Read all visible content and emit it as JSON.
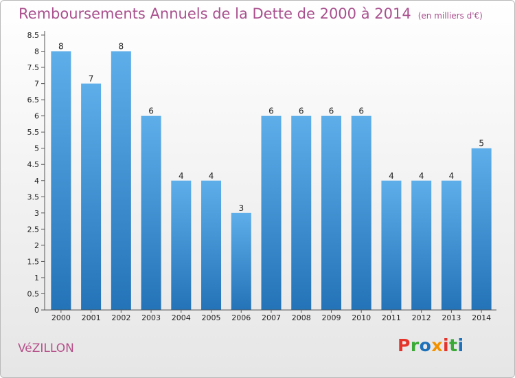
{
  "header": {
    "title": "Remboursements Annuels de la Dette de 2000 à 2014",
    "unit": "(en milliers d'€)"
  },
  "commune": "VéZILLON",
  "logo": {
    "text": "Proxiti",
    "letters": [
      {
        "char": "P",
        "color": "#e6332a"
      },
      {
        "char": "r",
        "color": "#3aa935"
      },
      {
        "char": "o",
        "color": "#1d71b8"
      },
      {
        "char": "x",
        "color": "#f39200"
      },
      {
        "char": "i",
        "color": "#e6332a"
      },
      {
        "char": "t",
        "color": "#3aa935"
      },
      {
        "char": "i",
        "color": "#1d71b8"
      }
    ]
  },
  "colors": {
    "bar_light": "#5eaeea",
    "bar_dark": "#2473b8",
    "title": "#a9508e"
  },
  "chart_data": {
    "type": "bar",
    "categories": [
      "2000",
      "2001",
      "2002",
      "2003",
      "2004",
      "2005",
      "2006",
      "2007",
      "2008",
      "2009",
      "2010",
      "2011",
      "2012",
      "2013",
      "2014"
    ],
    "values": [
      8,
      7,
      8,
      6,
      4,
      4,
      3,
      6,
      6,
      6,
      6,
      4,
      4,
      4,
      5
    ],
    "title": "Remboursements Annuels de la Dette de 2000 à 2014",
    "xlabel": "",
    "ylabel": "",
    "ylim": [
      0,
      8.5
    ],
    "yticks": [
      "0",
      "0.5",
      "1",
      "1.5",
      "2",
      "2.5",
      "3",
      "3.5",
      "4",
      "4.5",
      "5",
      "5.5",
      "6",
      "6.5",
      "7",
      "7.5",
      "8",
      "8.5"
    ],
    "grid": false,
    "legend": "none"
  }
}
